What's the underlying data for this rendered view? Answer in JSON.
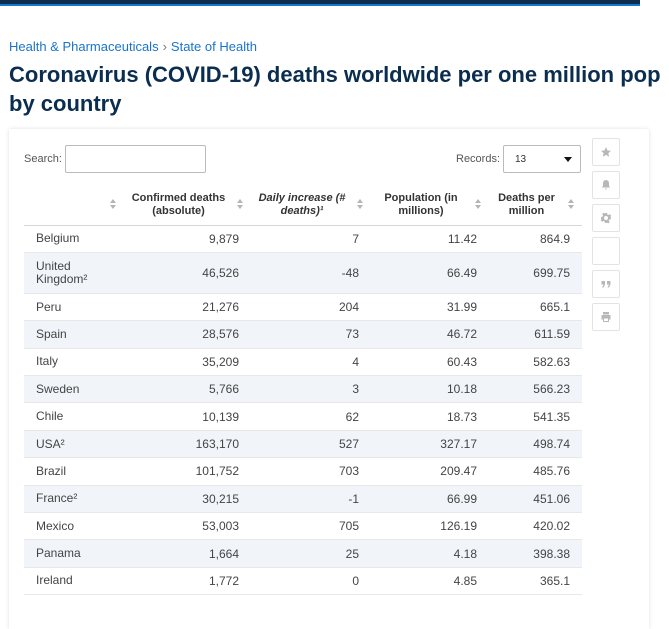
{
  "breadcrumb": {
    "items": [
      "Health & Pharmaceuticals",
      "State of Health"
    ],
    "separator": "›"
  },
  "page": {
    "title_line1": "Coronavirus (COVID-19) deaths worldwide per one million pop",
    "title_line2": "by country"
  },
  "controls": {
    "search_label": "Search:",
    "search_value": "",
    "records_label": "Records:",
    "records_value": "13"
  },
  "tools": [
    "star-icon",
    "bell-icon",
    "gear-icon",
    "blank",
    "quote-icon",
    "print-icon"
  ],
  "table": {
    "headers": [
      "",
      "Confirmed deaths (absolute)",
      "Daily increase (# deaths)¹",
      "Population (in millions)",
      "Deaths per million"
    ],
    "rows": [
      [
        "Belgium",
        "9,879",
        "7",
        "11.42",
        "864.9"
      ],
      [
        "United Kingdom²",
        "46,526",
        "-48",
        "66.49",
        "699.75"
      ],
      [
        "Peru",
        "21,276",
        "204",
        "31.99",
        "665.1"
      ],
      [
        "Spain",
        "28,576",
        "73",
        "46.72",
        "611.59"
      ],
      [
        "Italy",
        "35,209",
        "4",
        "60.43",
        "582.63"
      ],
      [
        "Sweden",
        "5,766",
        "3",
        "10.18",
        "566.23"
      ],
      [
        "Chile",
        "10,139",
        "62",
        "18.73",
        "541.35"
      ],
      [
        "USA²",
        "163,170",
        "527",
        "327.17",
        "498.74"
      ],
      [
        "Brazil",
        "101,752",
        "703",
        "209.47",
        "485.76"
      ],
      [
        "France²",
        "30,215",
        "-1",
        "66.99",
        "451.06"
      ],
      [
        "Mexico",
        "53,003",
        "705",
        "126.19",
        "420.02"
      ],
      [
        "Panama",
        "1,664",
        "25",
        "4.18",
        "398.38"
      ],
      [
        "Ireland",
        "1,772",
        "0",
        "4.85",
        "365.1"
      ]
    ]
  }
}
